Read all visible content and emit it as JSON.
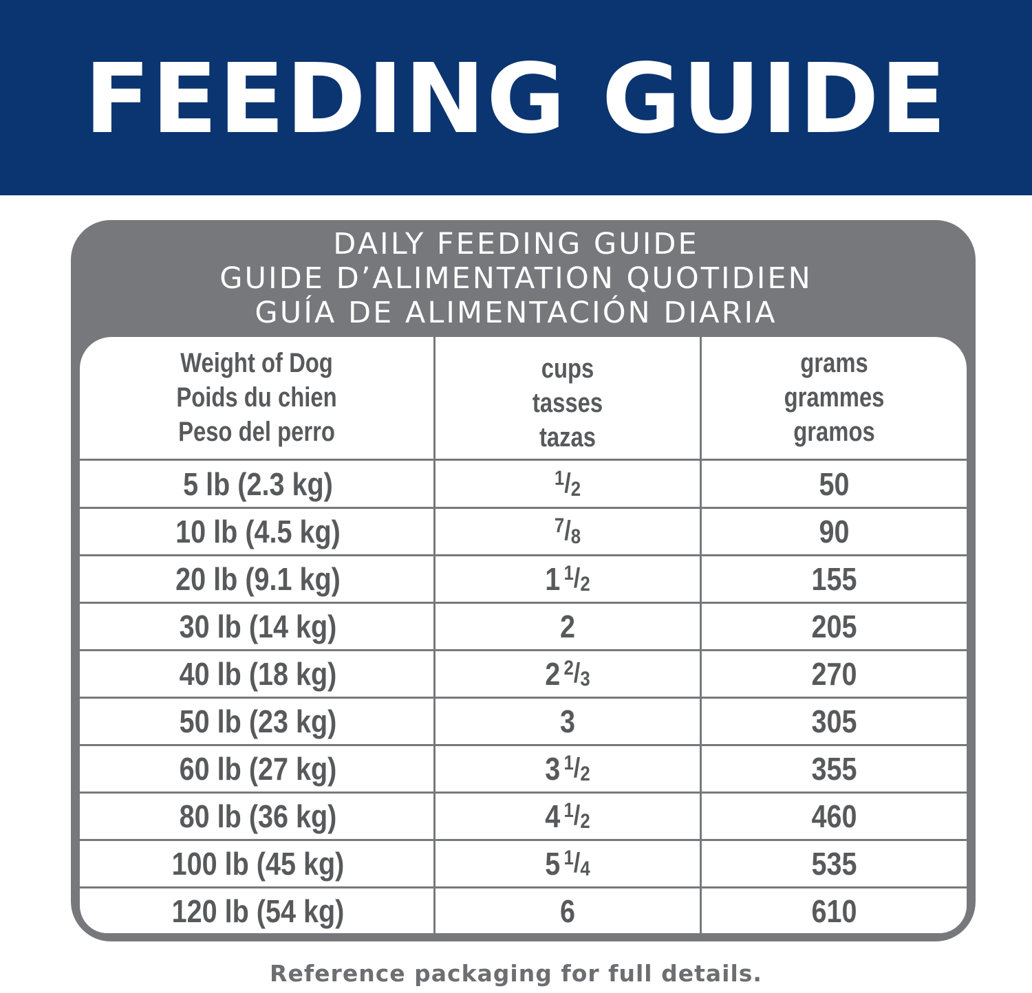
{
  "banner": {
    "title": "FEEDING GUIDE",
    "color": "#0b3570"
  },
  "card": {
    "heading": [
      "DAILY FEEDING GUIDE",
      "GUIDE D’ALIMENTATION QUOTIDIEN",
      "GUÍA DE ALIMENTACIÓN DIARIA"
    ],
    "color": "#77787b"
  },
  "table": {
    "headers": [
      [
        "Weight of Dog",
        "Poids du chien",
        "Peso del perro"
      ],
      [
        "cups",
        "tasses",
        "tazas"
      ],
      [
        "grams",
        "grammes",
        "gramos"
      ]
    ],
    "rows": [
      {
        "weight": "5 lb (2.3 kg)",
        "cups": {
          "whole": "",
          "num": "1",
          "den": "2"
        },
        "grams": "50"
      },
      {
        "weight": "10 lb (4.5 kg)",
        "cups": {
          "whole": "",
          "num": "7",
          "den": "8"
        },
        "grams": "90"
      },
      {
        "weight": "20 lb (9.1 kg)",
        "cups": {
          "whole": "1",
          "num": "1",
          "den": "2"
        },
        "grams": "155"
      },
      {
        "weight": "30 lb (14 kg)",
        "cups": {
          "whole": "2",
          "num": "",
          "den": ""
        },
        "grams": "205"
      },
      {
        "weight": "40 lb (18 kg)",
        "cups": {
          "whole": "2",
          "num": "2",
          "den": "3"
        },
        "grams": "270"
      },
      {
        "weight": "50 lb (23 kg)",
        "cups": {
          "whole": "3",
          "num": "",
          "den": ""
        },
        "grams": "305"
      },
      {
        "weight": "60 lb (27 kg)",
        "cups": {
          "whole": "3",
          "num": "1",
          "den": "2"
        },
        "grams": "355"
      },
      {
        "weight": "80 lb (36 kg)",
        "cups": {
          "whole": "4",
          "num": "1",
          "den": "2"
        },
        "grams": "460"
      },
      {
        "weight": "100 lb (45 kg)",
        "cups": {
          "whole": "5",
          "num": "1",
          "den": "4"
        },
        "grams": "535"
      },
      {
        "weight": "120 lb (54 kg)",
        "cups": {
          "whole": "6",
          "num": "",
          "den": ""
        },
        "grams": "610"
      }
    ]
  },
  "footer": {
    "note": "Reference packaging for full details."
  }
}
